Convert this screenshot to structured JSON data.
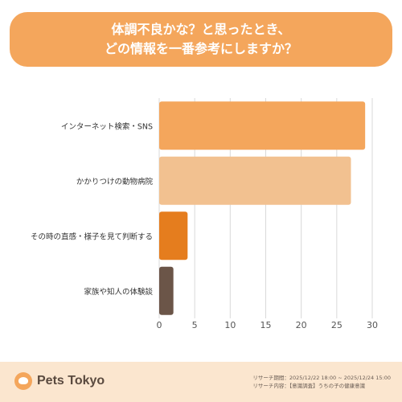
{
  "title": {
    "line1": "体調不良かな？と思ったとき、",
    "line2": "どの情報を一番参考にしますか？"
  },
  "chart_data": {
    "type": "bar",
    "orientation": "horizontal",
    "categories": [
      "インターネット検索・SNS",
      "かかりつけの動物病院",
      "その時の直感・様子を見て判断する",
      "家族や知人の体験談"
    ],
    "values": [
      29,
      27,
      4,
      2
    ],
    "colors": [
      "#f4a65c",
      "#f2c190",
      "#e57d1e",
      "#6b5548"
    ],
    "xlim": [
      0,
      30
    ],
    "xticks": [
      0,
      5,
      10,
      15,
      20,
      25,
      30
    ],
    "grid": true
  },
  "footer": {
    "logo": "Pets Tokyo",
    "research_period": "リサーチ期間：2025/12/22 18:00 ~ 2025/12/24 15:00",
    "research_content": "リサーチ内容：【意識調査】うちの子の健康意識"
  }
}
